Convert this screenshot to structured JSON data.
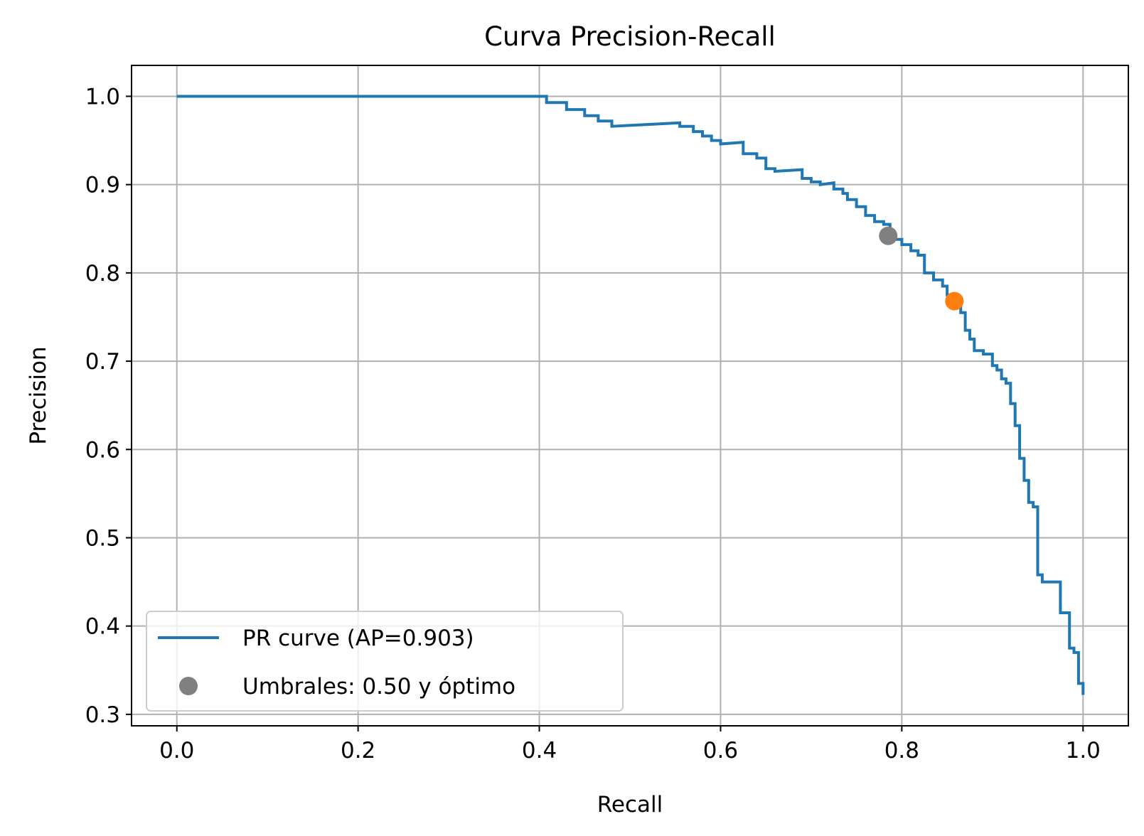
{
  "chart_data": {
    "type": "line",
    "title": "Curva Precision-Recall",
    "xlabel": "Recall",
    "ylabel": "Precision",
    "xlim": [
      -0.05,
      1.05
    ],
    "ylim": [
      0.287,
      1.035
    ],
    "xticks": [
      "0.0",
      "0.2",
      "0.4",
      "0.6",
      "0.8",
      "1.0"
    ],
    "xtick_values": [
      0.0,
      0.2,
      0.4,
      0.6,
      0.8,
      1.0
    ],
    "yticks": [
      "0.3",
      "0.4",
      "0.5",
      "0.6",
      "0.7",
      "0.8",
      "0.9",
      "1.0"
    ],
    "ytick_values": [
      0.3,
      0.4,
      0.5,
      0.6,
      0.7,
      0.8,
      0.9,
      1.0
    ],
    "grid": true,
    "legend_position": "lower-left",
    "colors": {
      "curve": "#1f77b4",
      "threshold_050": "#808080",
      "threshold_optimal": "#ff7f0e",
      "grid": "#b0b0b0"
    },
    "series": [
      {
        "name": "PR curve (AP=0.903)",
        "kind": "step-line",
        "x": [
          0.0,
          0.408,
          0.408,
          0.43,
          0.43,
          0.43,
          0.45,
          0.45,
          0.465,
          0.465,
          0.48,
          0.48,
          0.555,
          0.555,
          0.57,
          0.57,
          0.58,
          0.58,
          0.59,
          0.59,
          0.6,
          0.6,
          0.625,
          0.625,
          0.64,
          0.64,
          0.65,
          0.65,
          0.66,
          0.66,
          0.69,
          0.69,
          0.7,
          0.7,
          0.71,
          0.71,
          0.725,
          0.725,
          0.735,
          0.735,
          0.74,
          0.74,
          0.75,
          0.75,
          0.76,
          0.76,
          0.77,
          0.77,
          0.78,
          0.78,
          0.787,
          0.787,
          0.8,
          0.8,
          0.81,
          0.81,
          0.818,
          0.818,
          0.825,
          0.825,
          0.835,
          0.835,
          0.845,
          0.845,
          0.85,
          0.85,
          0.86,
          0.86,
          0.865,
          0.865,
          0.87,
          0.87,
          0.875,
          0.875,
          0.88,
          0.88,
          0.89,
          0.89,
          0.9,
          0.9,
          0.905,
          0.905,
          0.91,
          0.91,
          0.915,
          0.915,
          0.92,
          0.92,
          0.925,
          0.925,
          0.93,
          0.93,
          0.935,
          0.935,
          0.94,
          0.94,
          0.945,
          0.945,
          0.95,
          0.95,
          0.955,
          0.955,
          0.965,
          0.965,
          0.975,
          0.975,
          0.985,
          0.985,
          0.99,
          0.99,
          0.995,
          0.995,
          1.0,
          1.0
        ],
        "y": [
          1.0,
          1.0,
          0.993,
          0.993,
          0.993,
          0.985,
          0.985,
          0.978,
          0.978,
          0.972,
          0.972,
          0.966,
          0.97,
          0.966,
          0.966,
          0.96,
          0.96,
          0.955,
          0.955,
          0.95,
          0.95,
          0.946,
          0.948,
          0.935,
          0.935,
          0.93,
          0.93,
          0.918,
          0.918,
          0.915,
          0.917,
          0.907,
          0.907,
          0.903,
          0.903,
          0.9,
          0.902,
          0.895,
          0.895,
          0.89,
          0.89,
          0.883,
          0.883,
          0.875,
          0.875,
          0.865,
          0.865,
          0.858,
          0.858,
          0.855,
          0.855,
          0.838,
          0.838,
          0.832,
          0.832,
          0.825,
          0.825,
          0.82,
          0.82,
          0.8,
          0.8,
          0.792,
          0.792,
          0.785,
          0.785,
          0.775,
          0.775,
          0.765,
          0.765,
          0.755,
          0.755,
          0.735,
          0.735,
          0.725,
          0.725,
          0.712,
          0.712,
          0.708,
          0.708,
          0.695,
          0.695,
          0.69,
          0.69,
          0.68,
          0.68,
          0.675,
          0.675,
          0.652,
          0.652,
          0.627,
          0.627,
          0.59,
          0.59,
          0.565,
          0.565,
          0.54,
          0.54,
          0.535,
          0.535,
          0.458,
          0.458,
          0.45,
          0.45,
          0.45,
          0.45,
          0.415,
          0.415,
          0.375,
          0.375,
          0.37,
          0.37,
          0.335,
          0.335,
          0.322
        ]
      },
      {
        "name": "Umbrales: 0.50 y óptimo",
        "kind": "points",
        "points": [
          {
            "x": 0.785,
            "y": 0.842,
            "color": "#808080"
          },
          {
            "x": 0.858,
            "y": 0.768,
            "color": "#ff7f0e"
          }
        ]
      }
    ]
  }
}
